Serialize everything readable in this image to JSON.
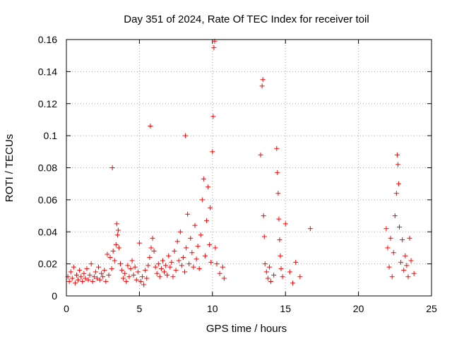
{
  "chart_data": {
    "type": "scatter",
    "title": "Day 351 of 2024, Rate Of TEC Index for receiver toil",
    "xlabel": "GPS time / hours",
    "ylabel": "ROTI / TECUs",
    "xlim": [
      0,
      25
    ],
    "ylim": [
      0,
      0.16
    ],
    "xticks": [
      0,
      5,
      10,
      15,
      20,
      25
    ],
    "yticks": [
      0,
      0.02,
      0.04,
      0.06,
      0.08,
      0.1,
      0.12,
      0.14,
      0.16
    ],
    "xtick_labels": [
      "0",
      "5",
      "10",
      "15",
      "20",
      "25"
    ],
    "ytick_labels": [
      "0",
      "0.02",
      "0.04",
      "0.06",
      "0.08",
      "0.1",
      "0.12",
      "0.14",
      "0.16"
    ],
    "grid": true,
    "marker": "+",
    "color": "#ff0000",
    "series": [
      {
        "name": "ROTI",
        "points": [
          [
            0.1,
            0.012
          ],
          [
            0.2,
            0.009
          ],
          [
            0.3,
            0.015
          ],
          [
            0.4,
            0.011
          ],
          [
            0.5,
            0.018
          ],
          [
            0.6,
            0.008
          ],
          [
            0.7,
            0.013
          ],
          [
            0.8,
            0.01
          ],
          [
            0.9,
            0.016
          ],
          [
            1.0,
            0.012
          ],
          [
            1.1,
            0.009
          ],
          [
            1.2,
            0.014
          ],
          [
            1.3,
            0.011
          ],
          [
            1.4,
            0.017
          ],
          [
            1.5,
            0.01
          ],
          [
            1.6,
            0.013
          ],
          [
            1.7,
            0.02
          ],
          [
            1.8,
            0.009
          ],
          [
            1.9,
            0.012
          ],
          [
            2.0,
            0.015
          ],
          [
            2.1,
            0.011
          ],
          [
            2.2,
            0.018
          ],
          [
            2.3,
            0.01
          ],
          [
            2.4,
            0.014
          ],
          [
            2.5,
            0.012
          ],
          [
            2.6,
            0.016
          ],
          [
            2.7,
            0.009
          ],
          [
            2.8,
            0.026
          ],
          [
            2.9,
            0.013
          ],
          [
            3.0,
            0.024
          ],
          [
            3.1,
            0.017
          ],
          [
            3.15,
            0.08
          ],
          [
            3.2,
            0.028
          ],
          [
            3.3,
            0.022
          ],
          [
            3.4,
            0.032
          ],
          [
            3.45,
            0.045
          ],
          [
            3.5,
            0.038
          ],
          [
            3.55,
            0.041
          ],
          [
            3.6,
            0.03
          ],
          [
            3.7,
            0.02
          ],
          [
            3.8,
            0.016
          ],
          [
            3.9,
            0.011
          ],
          [
            4.0,
            0.014
          ],
          [
            4.1,
            0.009
          ],
          [
            4.2,
            0.019
          ],
          [
            4.3,
            0.012
          ],
          [
            4.4,
            0.017
          ],
          [
            4.5,
            0.022
          ],
          [
            4.6,
            0.013
          ],
          [
            4.7,
            0.018
          ],
          [
            4.8,
            0.01
          ],
          [
            4.9,
            0.015
          ],
          [
            5.0,
            0.033
          ],
          [
            5.1,
            0.009
          ],
          [
            5.2,
            0.012
          ],
          [
            5.3,
            0.007
          ],
          [
            5.4,
            0.016
          ],
          [
            5.5,
            0.011
          ],
          [
            5.6,
            0.019
          ],
          [
            5.7,
            0.024
          ],
          [
            5.75,
            0.106
          ],
          [
            5.8,
            0.03
          ],
          [
            5.9,
            0.036
          ],
          [
            6.0,
            0.028
          ],
          [
            6.1,
            0.018
          ],
          [
            6.2,
            0.014
          ],
          [
            6.3,
            0.02
          ],
          [
            6.4,
            0.012
          ],
          [
            6.5,
            0.017
          ],
          [
            6.6,
            0.022
          ],
          [
            6.7,
            0.015
          ],
          [
            6.8,
            0.019
          ],
          [
            6.9,
            0.013
          ],
          [
            7.0,
            0.025
          ],
          [
            7.1,
            0.018
          ],
          [
            7.2,
            0.021
          ],
          [
            7.3,
            0.012
          ],
          [
            7.4,
            0.028
          ],
          [
            7.5,
            0.016
          ],
          [
            7.6,
            0.034
          ],
          [
            7.7,
            0.022
          ],
          [
            7.8,
            0.04
          ],
          [
            7.9,
            0.019
          ],
          [
            8.0,
            0.024
          ],
          [
            8.1,
            0.015
          ],
          [
            8.15,
            0.1
          ],
          [
            8.2,
            0.03
          ],
          [
            8.3,
            0.051
          ],
          [
            8.4,
            0.02
          ],
          [
            8.5,
            0.036
          ],
          [
            8.6,
            0.027
          ],
          [
            8.7,
            0.018
          ],
          [
            8.8,
            0.044
          ],
          [
            8.9,
            0.023
          ],
          [
            9.0,
            0.031
          ],
          [
            9.1,
            0.017
          ],
          [
            9.2,
            0.038
          ],
          [
            9.3,
            0.06
          ],
          [
            9.4,
            0.073
          ],
          [
            9.5,
            0.025
          ],
          [
            9.6,
            0.047
          ],
          [
            9.7,
            0.068
          ],
          [
            9.8,
            0.032
          ],
          [
            9.85,
            0.055
          ],
          [
            9.9,
            0.021
          ],
          [
            10.0,
            0.09
          ],
          [
            10.05,
            0.112
          ],
          [
            10.1,
            0.155
          ],
          [
            10.15,
            0.159
          ],
          [
            10.2,
            0.03
          ],
          [
            10.3,
            0.02
          ],
          [
            10.5,
            0.014
          ],
          [
            10.7,
            0.018
          ],
          [
            10.8,
            0.011
          ],
          [
            13.3,
            0.088
          ],
          [
            13.4,
            0.131
          ],
          [
            13.45,
            0.135
          ],
          [
            13.5,
            0.05
          ],
          [
            13.55,
            0.037
          ],
          [
            13.6,
            0.02
          ],
          [
            13.7,
            0.015
          ],
          [
            13.8,
            0.011
          ],
          [
            13.9,
            0.018
          ],
          [
            14.0,
            0.009
          ],
          [
            14.2,
            0.013
          ],
          [
            14.4,
            0.092
          ],
          [
            14.45,
            0.077
          ],
          [
            14.5,
            0.064
          ],
          [
            14.55,
            0.048
          ],
          [
            14.6,
            0.035
          ],
          [
            14.65,
            0.025
          ],
          [
            14.7,
            0.017
          ],
          [
            14.8,
            0.012
          ],
          [
            15.0,
            0.045
          ],
          [
            15.3,
            0.015
          ],
          [
            15.5,
            0.008
          ],
          [
            15.7,
            0.021
          ],
          [
            16.0,
            0.012
          ],
          [
            16.7,
            0.042
          ],
          [
            21.9,
            0.042
          ],
          [
            22.0,
            0.03
          ],
          [
            22.1,
            0.018
          ],
          [
            22.2,
            0.036
          ],
          [
            22.3,
            0.012
          ],
          [
            22.4,
            0.027
          ],
          [
            22.5,
            0.05
          ],
          [
            22.6,
            0.064
          ],
          [
            22.65,
            0.088
          ],
          [
            22.7,
            0.082
          ],
          [
            22.75,
            0.07
          ],
          [
            22.8,
            0.043
          ],
          [
            22.9,
            0.021
          ],
          [
            23.0,
            0.035
          ],
          [
            23.1,
            0.016
          ],
          [
            23.2,
            0.025
          ],
          [
            23.3,
            0.019
          ],
          [
            23.4,
            0.012
          ],
          [
            23.5,
            0.036
          ],
          [
            23.6,
            0.022
          ],
          [
            23.8,
            0.014
          ]
        ]
      }
    ]
  }
}
